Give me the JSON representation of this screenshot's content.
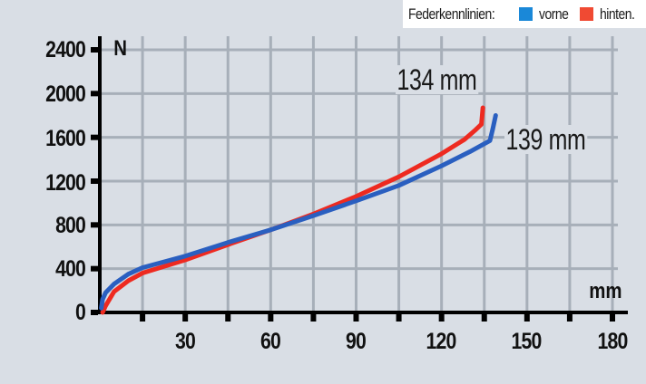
{
  "legend": {
    "title": "Federkennlinien:",
    "items": [
      {
        "label": "vorne",
        "color": "#1a88d8"
      },
      {
        "label": "hinten.",
        "color": "#f04a33"
      }
    ]
  },
  "axes": {
    "y_unit": "N",
    "x_unit": "mm",
    "y_ticks": [
      "2400",
      "2000",
      "1600",
      "1200",
      "800",
      "400",
      "0"
    ],
    "x_ticks": [
      "30",
      "60",
      "90",
      "120",
      "150",
      "180"
    ]
  },
  "annotations": {
    "hinten_travel": "134 mm",
    "vorne_travel": "139 mm"
  },
  "colors": {
    "background": "#d9dee5",
    "grid": "#a7afb9",
    "axis": "#000000",
    "vorne_line": "#2a5fc0",
    "hinten_line": "#ee2a20"
  },
  "chart_data": {
    "type": "line",
    "title": "Federkennlinien",
    "xlabel": "mm",
    "ylabel": "N",
    "xlim": [
      0,
      180
    ],
    "ylim": [
      0,
      2400
    ],
    "x_ticks": [
      30,
      60,
      90,
      120,
      150,
      180
    ],
    "x_minor_ticks": [
      15,
      45,
      75,
      105,
      135,
      165
    ],
    "y_ticks": [
      0,
      400,
      800,
      1200,
      1600,
      2000,
      2400
    ],
    "grid": true,
    "legend_position": "top-right",
    "legend": [
      "vorne",
      "hinten."
    ],
    "series": [
      {
        "name": "vorne",
        "color": "#2a5fc0",
        "end_label": "139 mm",
        "x": [
          0.5,
          1,
          2,
          5,
          10,
          15,
          30,
          45,
          60,
          75,
          90,
          105,
          120,
          130,
          137,
          138,
          139
        ],
        "y": [
          40,
          120,
          180,
          260,
          350,
          410,
          515,
          640,
          755,
          885,
          1020,
          1160,
          1340,
          1470,
          1570,
          1680,
          1800
        ]
      },
      {
        "name": "hinten",
        "color": "#ee2a20",
        "end_label": "134 mm",
        "x": [
          1,
          2,
          5,
          10,
          15,
          30,
          45,
          60,
          75,
          90,
          105,
          120,
          128,
          132,
          134,
          134.5
        ],
        "y": [
          0,
          60,
          190,
          290,
          360,
          480,
          620,
          755,
          900,
          1060,
          1240,
          1450,
          1580,
          1670,
          1720,
          1870
        ]
      }
    ]
  }
}
